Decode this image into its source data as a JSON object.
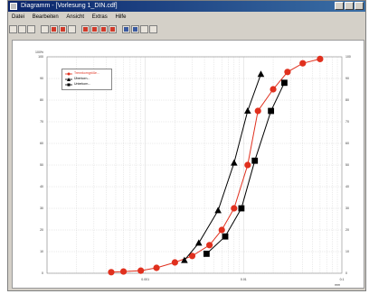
{
  "window": {
    "title": "Diagramm - [Vorlesung 1_DIN.cdf]"
  },
  "menu": [
    "Datei",
    "Bearbeiten",
    "Ansicht",
    "Extras",
    "Hilfe"
  ],
  "toolbar": {
    "buttons": [
      "print-icon",
      "copy-icon",
      "save-icon",
      "nav-left-icon",
      "zoom-in-icon",
      "zoom-out-icon",
      "grid-icon",
      "red-marker-icon",
      "red-marker-icon",
      "red-line-icon",
      "red-dot-icon",
      "chart-bar-icon",
      "chart-line-icon",
      "chart-area-icon",
      "table-icon"
    ]
  },
  "colors": {
    "red_series": "#e0301e",
    "black_series": "#000000",
    "grid": "#cccccc"
  },
  "chart_data": {
    "type": "line",
    "xscale": "log",
    "xlim": [
      0.0001,
      0.1
    ],
    "ylim": [
      0,
      100
    ],
    "xticks": [
      "0.001",
      "0.01",
      "0.1",
      "1"
    ],
    "yticks": [
      0,
      10,
      20,
      30,
      40,
      50,
      60,
      70,
      80,
      90,
      100
    ],
    "y_max_label": "100%",
    "x_unit_label": "mm",
    "legend": {
      "position": "top-left",
      "entries": [
        "Trennkorngröße...",
        "Überkorn...",
        "Unterkorn..."
      ]
    },
    "series": [
      {
        "marker": "circle",
        "color": "red",
        "points": [
          [
            0.00045,
            0.5
          ],
          [
            0.0006,
            0.8
          ],
          [
            0.0009,
            1.2
          ],
          [
            0.0013,
            2.5
          ],
          [
            0.002,
            5
          ],
          [
            0.003,
            8
          ],
          [
            0.0045,
            13
          ],
          [
            0.006,
            20
          ],
          [
            0.008,
            30
          ],
          [
            0.011,
            50
          ],
          [
            0.014,
            75
          ],
          [
            0.02,
            85
          ],
          [
            0.028,
            93
          ],
          [
            0.04,
            97
          ],
          [
            0.06,
            99
          ]
        ]
      },
      {
        "marker": "triangle",
        "color": "black",
        "points": [
          [
            0.0025,
            6
          ],
          [
            0.0035,
            14
          ],
          [
            0.0055,
            29
          ],
          [
            0.008,
            51
          ],
          [
            0.011,
            75
          ],
          [
            0.015,
            92
          ]
        ]
      },
      {
        "marker": "square",
        "color": "black",
        "points": [
          [
            0.0042,
            9
          ],
          [
            0.0065,
            17
          ],
          [
            0.0095,
            30
          ],
          [
            0.013,
            52
          ],
          [
            0.019,
            75
          ],
          [
            0.026,
            88
          ]
        ]
      }
    ]
  }
}
